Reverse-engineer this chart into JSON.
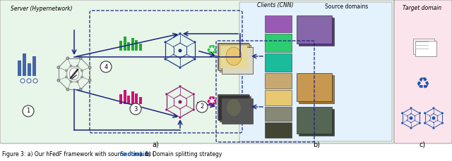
{
  "subtitle_a": "a)",
  "subtitle_b": "b)",
  "subtitle_c": "c)",
  "label_server": "Server (Hypernetwork)",
  "label_clients": "Clients (CNN)",
  "label_source": "Source domains",
  "label_target": "Target domain",
  "caption_pre": "Figure 3: a) Our hFedF framework with source domains (",
  "caption_link": "Section 4",
  "caption_post": "). b) Domain splitting strategy",
  "bg_color_a": "#e8f5e9",
  "bg_color_b": "#e3f2fd",
  "bg_color_c": "#fce4ec",
  "dark_blue": "#1a237e",
  "mid_blue": "#1565c0",
  "net_blue": "#1a3a8a",
  "net_pink": "#8b1a6b",
  "figsize": [
    6.4,
    2.29
  ],
  "dpi": 100
}
